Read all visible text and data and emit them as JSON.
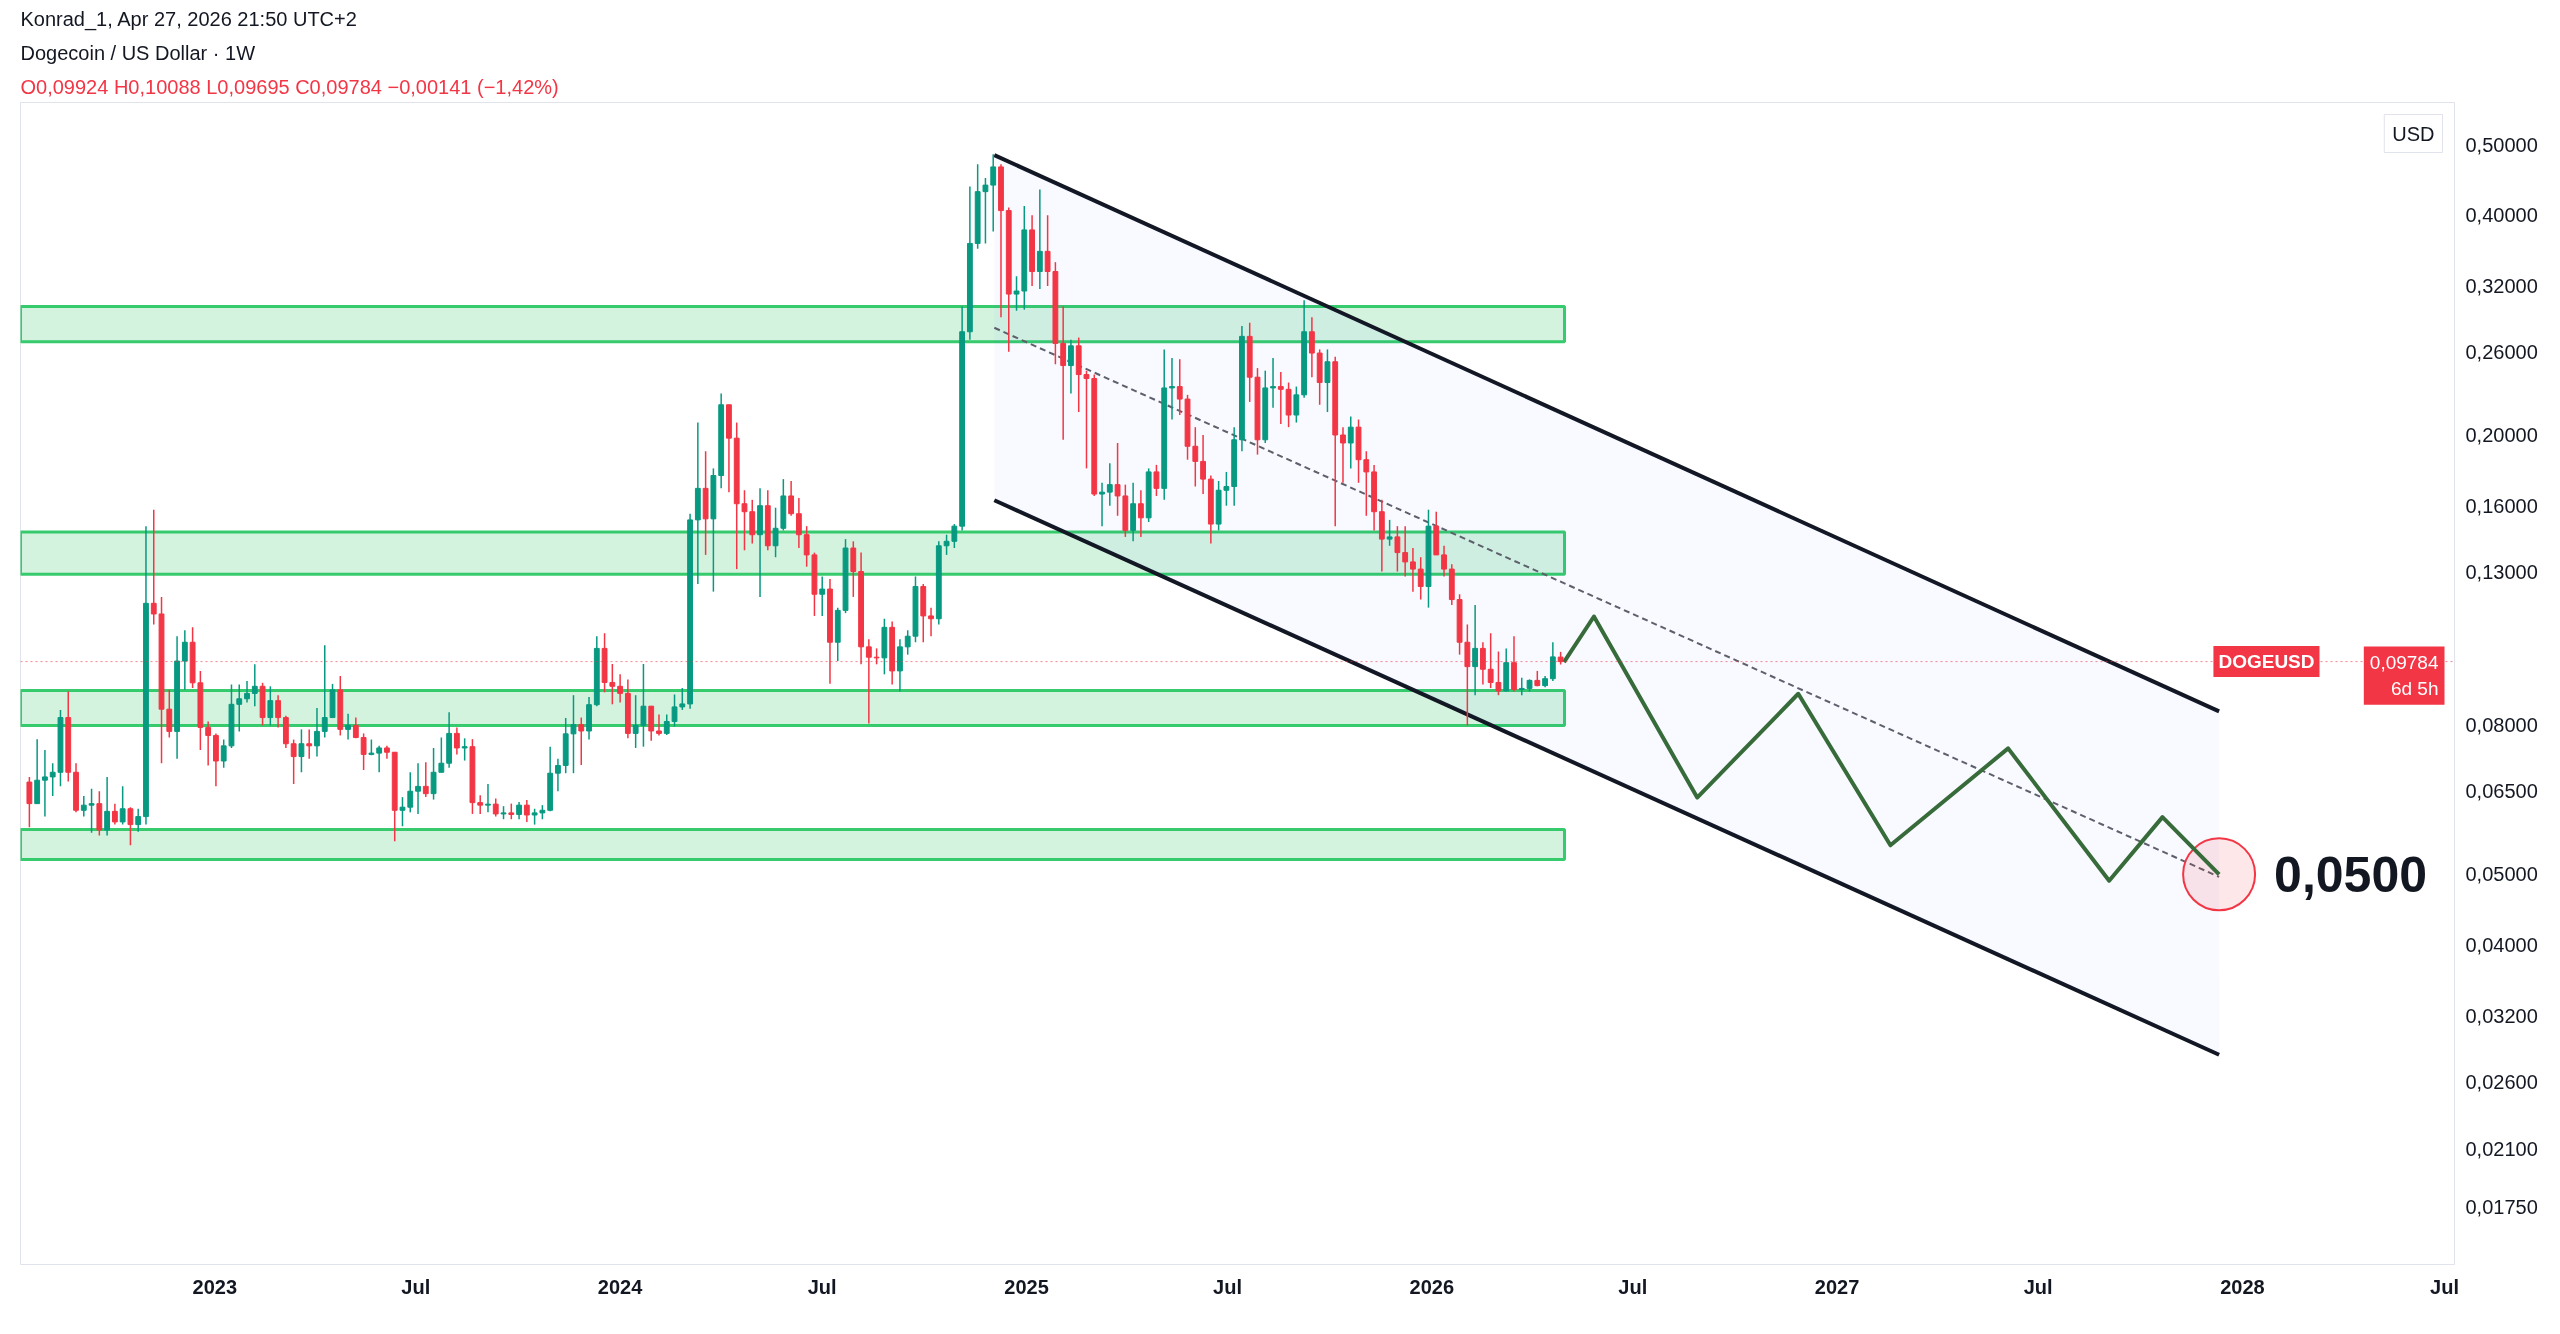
{
  "chart_data": {
    "type": "candlestick",
    "title": "Dogecoin / US Dollar · 1W",
    "subtitle": "O0,09924 H0,10088 L0,09695 C0,09784 −0,00141 (−1,42%)",
    "ylabel": "USD",
    "log": "y",
    "x": [
      "2022-07-18",
      "2022-07-25",
      "2022-08-01",
      "2022-08-08",
      "2022-08-15",
      "2022-08-22",
      "2022-08-29",
      "2022-09-05",
      "2022-09-12",
      "2022-09-19",
      "2022-09-26",
      "2022-10-03",
      "2022-10-10",
      "2022-10-17",
      "2022-10-24",
      "2022-10-31",
      "2022-11-07",
      "2022-11-14",
      "2022-11-21",
      "2022-11-28",
      "2022-12-05",
      "2022-12-12",
      "2022-12-19",
      "2022-12-26",
      "2023-01-02",
      "2023-01-09",
      "2023-01-16",
      "2023-01-23",
      "2023-01-30",
      "2023-02-06",
      "2023-02-13",
      "2023-02-20",
      "2023-02-27",
      "2023-03-06",
      "2023-03-13",
      "2023-03-20",
      "2023-03-27",
      "2023-04-03",
      "2023-04-10",
      "2023-04-17",
      "2023-04-24",
      "2023-05-01",
      "2023-05-08",
      "2023-05-15",
      "2023-05-22",
      "2023-05-29",
      "2023-06-05",
      "2023-06-12",
      "2023-06-19",
      "2023-06-26",
      "2023-07-03",
      "2023-07-10",
      "2023-07-17",
      "2023-07-24",
      "2023-07-31",
      "2023-08-07",
      "2023-08-14",
      "2023-08-21",
      "2023-08-28",
      "2023-09-04",
      "2023-09-11",
      "2023-09-18",
      "2023-09-25",
      "2023-10-02",
      "2023-10-09",
      "2023-10-16",
      "2023-10-23",
      "2023-10-30",
      "2023-11-06",
      "2023-11-13",
      "2023-11-20",
      "2023-11-27",
      "2023-12-04",
      "2023-12-11",
      "2023-12-18",
      "2023-12-25",
      "2024-01-01",
      "2024-01-08",
      "2024-01-15",
      "2024-01-22",
      "2024-01-29",
      "2024-02-05",
      "2024-02-12",
      "2024-02-19",
      "2024-02-26",
      "2024-03-04",
      "2024-03-11",
      "2024-03-18",
      "2024-03-25",
      "2024-04-01",
      "2024-04-08",
      "2024-04-15",
      "2024-04-22",
      "2024-04-29",
      "2024-05-06",
      "2024-05-13",
      "2024-05-20",
      "2024-05-27",
      "2024-06-03",
      "2024-06-10",
      "2024-06-17",
      "2024-06-24",
      "2024-07-01",
      "2024-07-08",
      "2024-07-15",
      "2024-07-22",
      "2024-07-29",
      "2024-08-05",
      "2024-08-12",
      "2024-08-19",
      "2024-08-26",
      "2024-09-02",
      "2024-09-09",
      "2024-09-16",
      "2024-09-23",
      "2024-09-30",
      "2024-10-07",
      "2024-10-14",
      "2024-10-21",
      "2024-10-28",
      "2024-11-04",
      "2024-11-11",
      "2024-11-18",
      "2024-11-25",
      "2024-12-02",
      "2024-12-09",
      "2024-12-16",
      "2024-12-23",
      "2024-12-30",
      "2025-01-06",
      "2025-01-13",
      "2025-01-20",
      "2025-01-27",
      "2025-02-03",
      "2025-02-10",
      "2025-02-17",
      "2025-02-24",
      "2025-03-03",
      "2025-03-10",
      "2025-03-17",
      "2025-03-24",
      "2025-03-31",
      "2025-04-07",
      "2025-04-14",
      "2025-04-21",
      "2025-04-28",
      "2025-05-05",
      "2025-05-12",
      "2025-05-19",
      "2025-05-26",
      "2025-06-02",
      "2025-06-09",
      "2025-06-16",
      "2025-06-23",
      "2025-06-30",
      "2025-07-07",
      "2025-07-14",
      "2025-07-21",
      "2025-07-28",
      "2025-08-04",
      "2025-08-11",
      "2025-08-18",
      "2025-08-25",
      "2025-09-01",
      "2025-09-08",
      "2025-09-15",
      "2025-09-22",
      "2025-09-29",
      "2025-10-06",
      "2025-10-13",
      "2025-10-20",
      "2025-10-27",
      "2025-11-03",
      "2025-11-10",
      "2025-11-17",
      "2025-11-24",
      "2025-12-01",
      "2025-12-08",
      "2025-12-15",
      "2025-12-22",
      "2025-12-29",
      "2026-01-05",
      "2026-01-12",
      "2026-01-19",
      "2026-01-26",
      "2026-02-02",
      "2026-02-09",
      "2026-02-16",
      "2026-02-23",
      "2026-03-02",
      "2026-03-09",
      "2026-03-16",
      "2026-03-23",
      "2026-03-30",
      "2026-04-06",
      "2026-04-13",
      "2026-04-20",
      "2026-04-27"
    ],
    "ohlc": [
      [
        0.0669,
        0.068,
        0.058,
        0.0625
      ],
      [
        0.0625,
        0.0766,
        0.0625,
        0.0673
      ],
      [
        0.0673,
        0.074,
        0.06,
        0.068
      ],
      [
        0.068,
        0.071,
        0.064,
        0.069
      ],
      [
        0.069,
        0.084,
        0.066,
        0.082
      ],
      [
        0.082,
        0.089,
        0.067,
        0.069
      ],
      [
        0.069,
        0.071,
        0.0608,
        0.0612
      ],
      [
        0.0612,
        0.064,
        0.06,
        0.0622
      ],
      [
        0.0622,
        0.0655,
        0.057,
        0.0625
      ],
      [
        0.0625,
        0.065,
        0.0565,
        0.0575
      ],
      [
        0.0575,
        0.068,
        0.0565,
        0.061
      ],
      [
        0.061,
        0.0625,
        0.0585,
        0.059
      ],
      [
        0.059,
        0.066,
        0.0585,
        0.0615
      ],
      [
        0.0615,
        0.0618,
        0.0548,
        0.0585
      ],
      [
        0.0585,
        0.0615,
        0.0572,
        0.06
      ],
      [
        0.06,
        0.15,
        0.0585,
        0.1176
      ],
      [
        0.1176,
        0.158,
        0.11,
        0.1137
      ],
      [
        0.1137,
        0.12,
        0.071,
        0.0842
      ],
      [
        0.0842,
        0.0895,
        0.077,
        0.0785
      ],
      [
        0.0785,
        0.106,
        0.072,
        0.098
      ],
      [
        0.098,
        0.108,
        0.0895,
        0.104
      ],
      [
        0.104,
        0.109,
        0.09,
        0.0915
      ],
      [
        0.0915,
        0.095,
        0.074,
        0.0795
      ],
      [
        0.0795,
        0.081,
        0.0705,
        0.0775
      ],
      [
        0.0775,
        0.078,
        0.066,
        0.0715
      ],
      [
        0.0715,
        0.0765,
        0.07,
        0.075
      ],
      [
        0.075,
        0.091,
        0.0745,
        0.0855
      ],
      [
        0.0855,
        0.091,
        0.0785,
        0.087
      ],
      [
        0.087,
        0.092,
        0.086,
        0.0885
      ],
      [
        0.0885,
        0.097,
        0.085,
        0.0905
      ],
      [
        0.0905,
        0.0915,
        0.08,
        0.082
      ],
      [
        0.082,
        0.0905,
        0.08,
        0.0865
      ],
      [
        0.0865,
        0.088,
        0.0795,
        0.082
      ],
      [
        0.082,
        0.0825,
        0.0745,
        0.0755
      ],
      [
        0.0755,
        0.0765,
        0.0665,
        0.0725
      ],
      [
        0.0725,
        0.079,
        0.069,
        0.0755
      ],
      [
        0.0755,
        0.079,
        0.072,
        0.075
      ],
      [
        0.075,
        0.0845,
        0.0725,
        0.0785
      ],
      [
        0.0785,
        0.103,
        0.077,
        0.082
      ],
      [
        0.082,
        0.0912,
        0.082,
        0.0895
      ],
      [
        0.0895,
        0.0935,
        0.0775,
        0.079
      ],
      [
        0.079,
        0.083,
        0.0765,
        0.08
      ],
      [
        0.08,
        0.082,
        0.0768,
        0.077
      ],
      [
        0.077,
        0.078,
        0.0695,
        0.073
      ],
      [
        0.073,
        0.0765,
        0.0728,
        0.0733
      ],
      [
        0.0733,
        0.075,
        0.069,
        0.0745
      ],
      [
        0.0745,
        0.075,
        0.072,
        0.0735
      ],
      [
        0.0735,
        0.0735,
        0.0555,
        0.0612
      ],
      [
        0.0612,
        0.0638,
        0.0582,
        0.0618
      ],
      [
        0.0618,
        0.069,
        0.0608,
        0.065
      ],
      [
        0.065,
        0.071,
        0.0605,
        0.066
      ],
      [
        0.066,
        0.0712,
        0.0638,
        0.0645
      ],
      [
        0.0645,
        0.0745,
        0.0633,
        0.069
      ],
      [
        0.069,
        0.077,
        0.069,
        0.071
      ],
      [
        0.071,
        0.0834,
        0.07,
        0.078
      ],
      [
        0.078,
        0.0795,
        0.073,
        0.0745
      ],
      [
        0.0745,
        0.0768,
        0.0716,
        0.0748
      ],
      [
        0.0748,
        0.0766,
        0.0605,
        0.0627
      ],
      [
        0.0627,
        0.0642,
        0.0605,
        0.0622
      ],
      [
        0.0622,
        0.0665,
        0.0608,
        0.0624
      ],
      [
        0.0624,
        0.0635,
        0.06,
        0.0605
      ],
      [
        0.0605,
        0.062,
        0.0595,
        0.0607
      ],
      [
        0.0607,
        0.0625,
        0.0595,
        0.0604
      ],
      [
        0.0604,
        0.0628,
        0.0595,
        0.0622
      ],
      [
        0.0622,
        0.0632,
        0.059,
        0.0603
      ],
      [
        0.0603,
        0.0615,
        0.0585,
        0.0607
      ],
      [
        0.0607,
        0.0622,
        0.0595,
        0.0612
      ],
      [
        0.0612,
        0.0748,
        0.061,
        0.0688
      ],
      [
        0.0688,
        0.072,
        0.065,
        0.0705
      ],
      [
        0.0705,
        0.0819,
        0.0688,
        0.0779
      ],
      [
        0.0779,
        0.088,
        0.0688,
        0.0802
      ],
      [
        0.0802,
        0.082,
        0.0706,
        0.0786
      ],
      [
        0.0786,
        0.0875,
        0.0765,
        0.0854
      ],
      [
        0.0854,
        0.106,
        0.085,
        0.102
      ],
      [
        0.102,
        0.107,
        0.0888,
        0.0916
      ],
      [
        0.0916,
        0.0971,
        0.0855,
        0.0905
      ],
      [
        0.0905,
        0.094,
        0.086,
        0.0885
      ],
      [
        0.0885,
        0.0925,
        0.0768,
        0.078
      ],
      [
        0.078,
        0.088,
        0.0745,
        0.08
      ],
      [
        0.08,
        0.0971,
        0.0748,
        0.085
      ],
      [
        0.085,
        0.085,
        0.0762,
        0.0786
      ],
      [
        0.0786,
        0.0828,
        0.0775,
        0.078
      ],
      [
        0.078,
        0.0828,
        0.0776,
        0.081
      ],
      [
        0.081,
        0.0882,
        0.0797,
        0.0848
      ],
      [
        0.0848,
        0.09,
        0.084,
        0.0856
      ],
      [
        0.0856,
        0.156,
        0.0843,
        0.153
      ],
      [
        0.153,
        0.208,
        0.125,
        0.169
      ],
      [
        0.169,
        0.19,
        0.137,
        0.1535
      ],
      [
        0.1535,
        0.18,
        0.122,
        0.176
      ],
      [
        0.176,
        0.228,
        0.169,
        0.22
      ],
      [
        0.22,
        0.22,
        0.167,
        0.198
      ],
      [
        0.198,
        0.208,
        0.131,
        0.161
      ],
      [
        0.161,
        0.168,
        0.139,
        0.157
      ],
      [
        0.157,
        0.163,
        0.142,
        0.146
      ],
      [
        0.146,
        0.169,
        0.12,
        0.16
      ],
      [
        0.16,
        0.168,
        0.139,
        0.141
      ],
      [
        0.141,
        0.159,
        0.136,
        0.149
      ],
      [
        0.149,
        0.174,
        0.148,
        0.165
      ],
      [
        0.165,
        0.173,
        0.155,
        0.156
      ],
      [
        0.156,
        0.164,
        0.14,
        0.146
      ],
      [
        0.146,
        0.15,
        0.132,
        0.137
      ],
      [
        0.137,
        0.138,
        0.113,
        0.121
      ],
      [
        0.121,
        0.128,
        0.113,
        0.123
      ],
      [
        0.123,
        0.127,
        0.0912,
        0.104
      ],
      [
        0.104,
        0.116,
        0.098,
        0.115
      ],
      [
        0.115,
        0.144,
        0.114,
        0.14
      ],
      [
        0.14,
        0.143,
        0.12,
        0.13
      ],
      [
        0.13,
        0.138,
        0.097,
        0.1025
      ],
      [
        0.1025,
        0.105,
        0.0805,
        0.0992
      ],
      [
        0.0992,
        0.102,
        0.097,
        0.099
      ],
      [
        0.099,
        0.112,
        0.094,
        0.109
      ],
      [
        0.109,
        0.111,
        0.091,
        0.095
      ],
      [
        0.095,
        0.105,
        0.089,
        0.1025
      ],
      [
        0.1025,
        0.108,
        0.1,
        0.106
      ],
      [
        0.106,
        0.128,
        0.104,
        0.124
      ],
      [
        0.124,
        0.125,
        0.104,
        0.113
      ],
      [
        0.113,
        0.116,
        0.106,
        0.112
      ],
      [
        0.112,
        0.143,
        0.11,
        0.141
      ],
      [
        0.141,
        0.146,
        0.137,
        0.143
      ],
      [
        0.143,
        0.151,
        0.14,
        0.15
      ],
      [
        0.15,
        0.3,
        0.148,
        0.277
      ],
      [
        0.277,
        0.438,
        0.27,
        0.366
      ],
      [
        0.366,
        0.47,
        0.36,
        0.431
      ],
      [
        0.431,
        0.45,
        0.366,
        0.44
      ],
      [
        0.44,
        0.485,
        0.38,
        0.466
      ],
      [
        0.466,
        0.47,
        0.29,
        0.406
      ],
      [
        0.406,
        0.41,
        0.26,
        0.312
      ],
      [
        0.312,
        0.33,
        0.296,
        0.315
      ],
      [
        0.315,
        0.412,
        0.297,
        0.382
      ],
      [
        0.382,
        0.4,
        0.32,
        0.335
      ],
      [
        0.335,
        0.434,
        0.317,
        0.357
      ],
      [
        0.357,
        0.4,
        0.32,
        0.335
      ],
      [
        0.335,
        0.345,
        0.25,
        0.267
      ],
      [
        0.267,
        0.3,
        0.197,
        0.249
      ],
      [
        0.249,
        0.27,
        0.228,
        0.265
      ],
      [
        0.265,
        0.272,
        0.215,
        0.242
      ],
      [
        0.242,
        0.245,
        0.18,
        0.239
      ],
      [
        0.239,
        0.242,
        0.165,
        0.166
      ],
      [
        0.166,
        0.172,
        0.15,
        0.167
      ],
      [
        0.167,
        0.183,
        0.16,
        0.171
      ],
      [
        0.171,
        0.195,
        0.155,
        0.165
      ],
      [
        0.165,
        0.171,
        0.145,
        0.148
      ],
      [
        0.148,
        0.172,
        0.143,
        0.161
      ],
      [
        0.161,
        0.168,
        0.145,
        0.154
      ],
      [
        0.154,
        0.18,
        0.152,
        0.178
      ],
      [
        0.178,
        0.182,
        0.165,
        0.169
      ],
      [
        0.169,
        0.262,
        0.163,
        0.232
      ],
      [
        0.232,
        0.255,
        0.21,
        0.233
      ],
      [
        0.233,
        0.254,
        0.213,
        0.224
      ],
      [
        0.224,
        0.227,
        0.185,
        0.193
      ],
      [
        0.193,
        0.205,
        0.17,
        0.184
      ],
      [
        0.184,
        0.2,
        0.166,
        0.174
      ],
      [
        0.174,
        0.176,
        0.142,
        0.151
      ],
      [
        0.151,
        0.173,
        0.148,
        0.168
      ],
      [
        0.168,
        0.178,
        0.16,
        0.17
      ],
      [
        0.17,
        0.205,
        0.16,
        0.197
      ],
      [
        0.197,
        0.282,
        0.19,
        0.273
      ],
      [
        0.273,
        0.285,
        0.222,
        0.24
      ],
      [
        0.24,
        0.247,
        0.188,
        0.197
      ],
      [
        0.197,
        0.245,
        0.195,
        0.232
      ],
      [
        0.232,
        0.255,
        0.218,
        0.233
      ],
      [
        0.233,
        0.244,
        0.207,
        0.231
      ],
      [
        0.231,
        0.236,
        0.205,
        0.213
      ],
      [
        0.213,
        0.233,
        0.208,
        0.227
      ],
      [
        0.227,
        0.306,
        0.225,
        0.277
      ],
      [
        0.277,
        0.29,
        0.24,
        0.259
      ],
      [
        0.259,
        0.262,
        0.22,
        0.236
      ],
      [
        0.236,
        0.262,
        0.215,
        0.252
      ],
      [
        0.252,
        0.256,
        0.15,
        0.2
      ],
      [
        0.2,
        0.205,
        0.172,
        0.195
      ],
      [
        0.195,
        0.212,
        0.18,
        0.205
      ],
      [
        0.205,
        0.21,
        0.172,
        0.185
      ],
      [
        0.185,
        0.19,
        0.155,
        0.178
      ],
      [
        0.178,
        0.182,
        0.148,
        0.157
      ],
      [
        0.157,
        0.163,
        0.13,
        0.144
      ],
      [
        0.144,
        0.153,
        0.141,
        0.145
      ],
      [
        0.145,
        0.15,
        0.13,
        0.138
      ],
      [
        0.138,
        0.15,
        0.128,
        0.134
      ],
      [
        0.134,
        0.14,
        0.122,
        0.131
      ],
      [
        0.131,
        0.136,
        0.119,
        0.124
      ],
      [
        0.124,
        0.158,
        0.116,
        0.15
      ],
      [
        0.15,
        0.157,
        0.137,
        0.137
      ],
      [
        0.137,
        0.141,
        0.128,
        0.131
      ],
      [
        0.131,
        0.133,
        0.117,
        0.119
      ],
      [
        0.119,
        0.121,
        0.1,
        0.104
      ],
      [
        0.104,
        0.11,
        0.08,
        0.0963
      ],
      [
        0.0963,
        0.117,
        0.088,
        0.102
      ],
      [
        0.102,
        0.104,
        0.091,
        0.0955
      ],
      [
        0.0955,
        0.107,
        0.09,
        0.0916
      ],
      [
        0.0916,
        0.101,
        0.088,
        0.0892
      ],
      [
        0.0892,
        0.102,
        0.089,
        0.0975
      ],
      [
        0.0975,
        0.106,
        0.089,
        0.0896
      ],
      [
        0.0896,
        0.093,
        0.088,
        0.0899
      ],
      [
        0.0899,
        0.0925,
        0.089,
        0.0922
      ],
      [
        0.0922,
        0.095,
        0.0905,
        0.0907
      ],
      [
        0.0907,
        0.0935,
        0.0902,
        0.0927
      ],
      [
        0.0927,
        0.104,
        0.092,
        0.0993
      ],
      [
        0.09924,
        0.10088,
        0.09695,
        0.09784
      ]
    ],
    "colors": [
      "#f23645",
      "#089981",
      "#089981",
      "#089981",
      "#089981",
      "#f23645",
      "#f23645",
      "#089981",
      "#089981",
      "#f23645",
      "#089981",
      "#f23645",
      "#089981",
      "#f23645",
      "#089981",
      "#089981",
      "#f23645",
      "#f23645",
      "#f23645",
      "#089981",
      "#089981",
      "#f23645",
      "#f23645",
      "#f23645",
      "#f23645",
      "#089981",
      "#089981",
      "#089981",
      "#089981",
      "#089981",
      "#f23645",
      "#089981",
      "#f23645",
      "#f23645",
      "#f23645",
      "#089981",
      "#f23645",
      "#089981",
      "#089981",
      "#089981",
      "#f23645",
      "#089981",
      "#f23645",
      "#f23645",
      "#089981",
      "#089981",
      "#f23645",
      "#f23645",
      "#089981",
      "#089981",
      "#089981",
      "#f23645",
      "#089981",
      "#089981",
      "#089981",
      "#f23645",
      "#089981",
      "#f23645",
      "#f23645",
      "#089981",
      "#f23645",
      "#089981",
      "#f23645",
      "#089981",
      "#f23645",
      "#089981",
      "#089981",
      "#089981",
      "#089981",
      "#089981",
      "#089981",
      "#f23645",
      "#089981",
      "#089981",
      "#f23645",
      "#f23645",
      "#f23645",
      "#f23645",
      "#089981",
      "#089981",
      "#f23645",
      "#f23645",
      "#089981",
      "#089981",
      "#089981",
      "#089981",
      "#089981",
      "#f23645",
      "#089981",
      "#089981",
      "#f23645",
      "#f23645",
      "#f23645",
      "#f23645",
      "#089981",
      "#f23645",
      "#089981",
      "#089981",
      "#f23645",
      "#f23645",
      "#f23645",
      "#f23645",
      "#089981",
      "#f23645",
      "#089981",
      "#089981",
      "#f23645",
      "#f23645",
      "#f23645",
      "#f23645",
      "#089981",
      "#f23645",
      "#089981",
      "#089981",
      "#089981",
      "#f23645",
      "#f23645",
      "#089981",
      "#089981",
      "#089981",
      "#089981",
      "#089981",
      "#089981",
      "#089981",
      "#089981",
      "#f23645",
      "#f23645",
      "#089981",
      "#089981",
      "#f23645",
      "#089981",
      "#f23645",
      "#f23645",
      "#f23645",
      "#089981",
      "#f23645",
      "#f23645",
      "#f23645",
      "#089981",
      "#089981",
      "#f23645",
      "#f23645",
      "#089981",
      "#f23645",
      "#089981",
      "#f23645",
      "#089981",
      "#089981",
      "#f23645",
      "#f23645",
      "#f23645",
      "#f23645",
      "#f23645",
      "#089981",
      "#089981",
      "#089981",
      "#089981",
      "#f23645",
      "#f23645",
      "#089981",
      "#089981",
      "#f23645",
      "#f23645",
      "#089981",
      "#089981",
      "#f23645",
      "#f23645",
      "#089981",
      "#f23645",
      "#f23645",
      "#089981",
      "#f23645",
      "#f23645",
      "#f23645",
      "#f23645",
      "#089981",
      "#f23645",
      "#f23645",
      "#f23645",
      "#f23645",
      "#089981",
      "#f23645",
      "#f23645",
      "#f23645",
      "#f23645",
      "#f23645",
      "#089981",
      "#f23645",
      "#f23645",
      "#f23645",
      "#089981",
      "#f23645",
      "#089981",
      "#089981",
      "#f23645",
      "#089981",
      "#089981",
      "#f23645"
    ],
    "series": [
      {
        "type": "line",
        "color": "#131722",
        "x": [
          "2024-12-03",
          "2027-12-11"
        ],
        "values": [
          0.4836,
          0.0836
        ]
      },
      {
        "type": "line",
        "color": "#131722",
        "x": [
          "2024-12-03",
          "2027-12-11"
        ],
        "values": [
          0.1628,
          0.0283
        ]
      },
      {
        "type": "line",
        "color": "#5d606b",
        "line_style": "dashed",
        "x": [
          "2024-12-03",
          "2027-12-11"
        ],
        "values": [
          0.2805,
          0.0496
        ],
        "lower": [
          0.1628,
          0.0283
        ],
        "upper": [
          0.4836,
          0.0836
        ]
      },
      {
        "type": "scatter",
        "color": "#f23645",
        "marker": "circle",
        "x": [
          "2027-12-11"
        ],
        "values": [
          0.05
        ]
      },
      {
        "type": "line",
        "color": "#386b3a",
        "x": [
          "2026-04-30",
          "2026-05-27",
          "2026-08-28",
          "2026-11-27",
          "2027-02-18",
          "2027-06-04",
          "2027-09-03",
          "2027-10-21",
          "2027-12-11"
        ],
        "values": [
          0.0977,
          0.1128,
          0.0637,
          0.0884,
          0.0548,
          0.0744,
          0.049,
          0.0599,
          0.05
        ]
      }
    ],
    "bands": [
      {
        "axis": "y",
        "from": 0.2684,
        "to": 0.3,
        "color": "#22c55e"
      },
      {
        "axis": "y",
        "from": 0.1289,
        "to": 0.1473,
        "color": "#22c55e"
      },
      {
        "axis": "y",
        "from": 0.08,
        "to": 0.0893,
        "color": "#22c55e"
      },
      {
        "axis": "y",
        "from": 0.0524,
        "to": 0.0576,
        "color": "#22c55e"
      }
    ],
    "ref_lines": [
      {
        "axis": "y",
        "value": 0.09784,
        "label": "DOGEUSD",
        "color": "#f23645",
        "line_style": "dotted"
      }
    ],
    "annotations": [
      "Konrad_1, Apr 27, 2026 21:50 UTC+2",
      "0,09784",
      "6d 5h",
      {
        "text": "0,0500",
        "x": "2027-12-11",
        "y": 0.05
      }
    ],
    "xlim": [
      "2022-07-10",
      "2028-07-10"
    ],
    "xticks": [
      {
        "value": "2023-01-01",
        "label": "2023"
      },
      {
        "value": "2023-07-01",
        "label": "Jul"
      },
      {
        "value": "2024-01-01",
        "label": "2024"
      },
      {
        "value": "2024-07-01",
        "label": "Jul"
      },
      {
        "value": "2025-01-01",
        "label": "2025"
      },
      {
        "value": "2025-07-01",
        "label": "Jul"
      },
      {
        "value": "2026-01-01",
        "label": "2026"
      },
      {
        "value": "2026-07-01",
        "label": "Jul"
      },
      {
        "value": "2027-01-01",
        "label": "2027"
      },
      {
        "value": "2027-07-01",
        "label": "Jul"
      },
      {
        "value": "2028-01-01",
        "label": "2028"
      },
      {
        "value": "2028-07-01",
        "label": "Jul"
      }
    ],
    "ylim": [
      0.0146,
      0.571
    ],
    "yticks": [
      {
        "value": 0.5,
        "label": "0,50000"
      },
      {
        "value": 0.4,
        "label": "0,40000"
      },
      {
        "value": 0.32,
        "label": "0,32000"
      },
      {
        "value": 0.26,
        "label": "0,26000"
      },
      {
        "value": 0.2,
        "label": "0,20000"
      },
      {
        "value": 0.16,
        "label": "0,16000"
      },
      {
        "value": 0.13,
        "label": "0,13000"
      },
      {
        "value": 0.08,
        "label": "0,08000"
      },
      {
        "value": 0.065,
        "label": "0,06500"
      },
      {
        "value": 0.05,
        "label": "0,05000"
      },
      {
        "value": 0.04,
        "label": "0,04000"
      },
      {
        "value": 0.032,
        "label": "0,03200"
      },
      {
        "value": 0.026,
        "label": "0,02600"
      },
      {
        "value": 0.021,
        "label": "0,02100"
      },
      {
        "value": 0.0175,
        "label": "0,01750"
      }
    ]
  }
}
